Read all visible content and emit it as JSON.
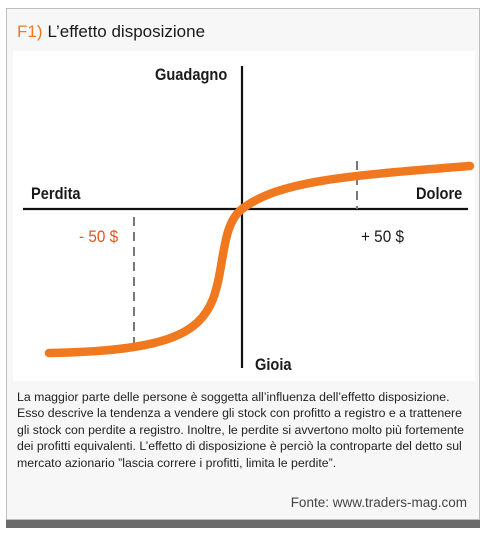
{
  "figure": {
    "id": "F1)",
    "title": "L’effetto disposizione"
  },
  "diagram": {
    "axis_top_label": "Guadagno",
    "axis_bottom_label": "Gioia",
    "axis_left_label": "Perdita",
    "axis_right_label": "Dolore",
    "marker_negative": "- 50 $",
    "marker_positive": "+ 50 $",
    "curve_color": "#f0781e",
    "negative_color": "#e0531b"
  },
  "caption": "La maggior parte delle persone è soggetta all’influenza dell’effetto disposizione. Esso descrive la tendenza a vendere gli stock con profitto a registro e a trattenere gli stock con perdite a registro. Inoltre, le perdite si avvertono molto più fortemente dei profitti equivalenti. L’effetto di disposizione è perciò la controparte del detto sul mercato azionario ”lascia correre i profitti, limita le perdite”.",
  "source": "Fonte: www.traders-mag.com"
}
